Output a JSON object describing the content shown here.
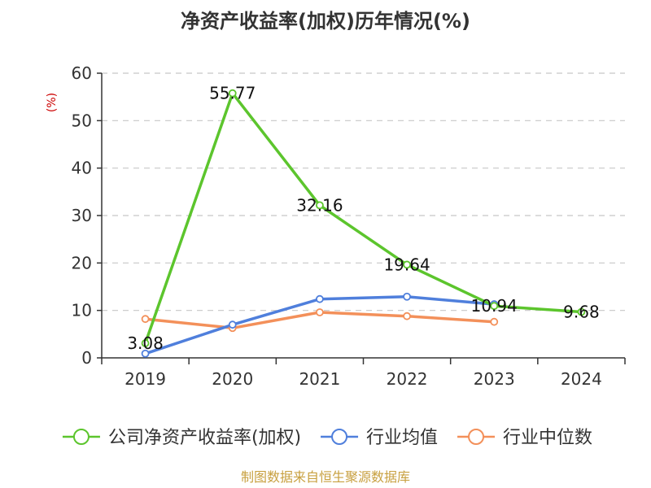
{
  "chart_data": {
    "type": "line",
    "title": "净资产收益率(加权)历年情况(%)",
    "ylabel": "(%)",
    "xlabel": "",
    "categories": [
      "2019",
      "2020",
      "2021",
      "2022",
      "2023",
      "2024"
    ],
    "ylim": [
      0,
      60
    ],
    "yticks": [
      0,
      10,
      20,
      30,
      40,
      50,
      60
    ],
    "grid": true,
    "legend_position": "bottom",
    "series": [
      {
        "name": "公司净资产收益率(加权)",
        "color": "#5cc52d",
        "values": [
          3.08,
          55.77,
          32.16,
          19.64,
          10.94,
          9.68
        ],
        "labels": [
          "3.08",
          "55.77",
          "32.16",
          "19.64",
          "10.94",
          "9.68"
        ]
      },
      {
        "name": "行业均值",
        "color": "#4f7fdc",
        "values": [
          0.9,
          7.0,
          12.4,
          12.9,
          11.3,
          null
        ]
      },
      {
        "name": "行业中位数",
        "color": "#f3905a",
        "values": [
          8.2,
          6.3,
          9.6,
          8.8,
          7.6,
          null
        ]
      }
    ],
    "source": "制图数据来自恒生聚源数据库"
  }
}
